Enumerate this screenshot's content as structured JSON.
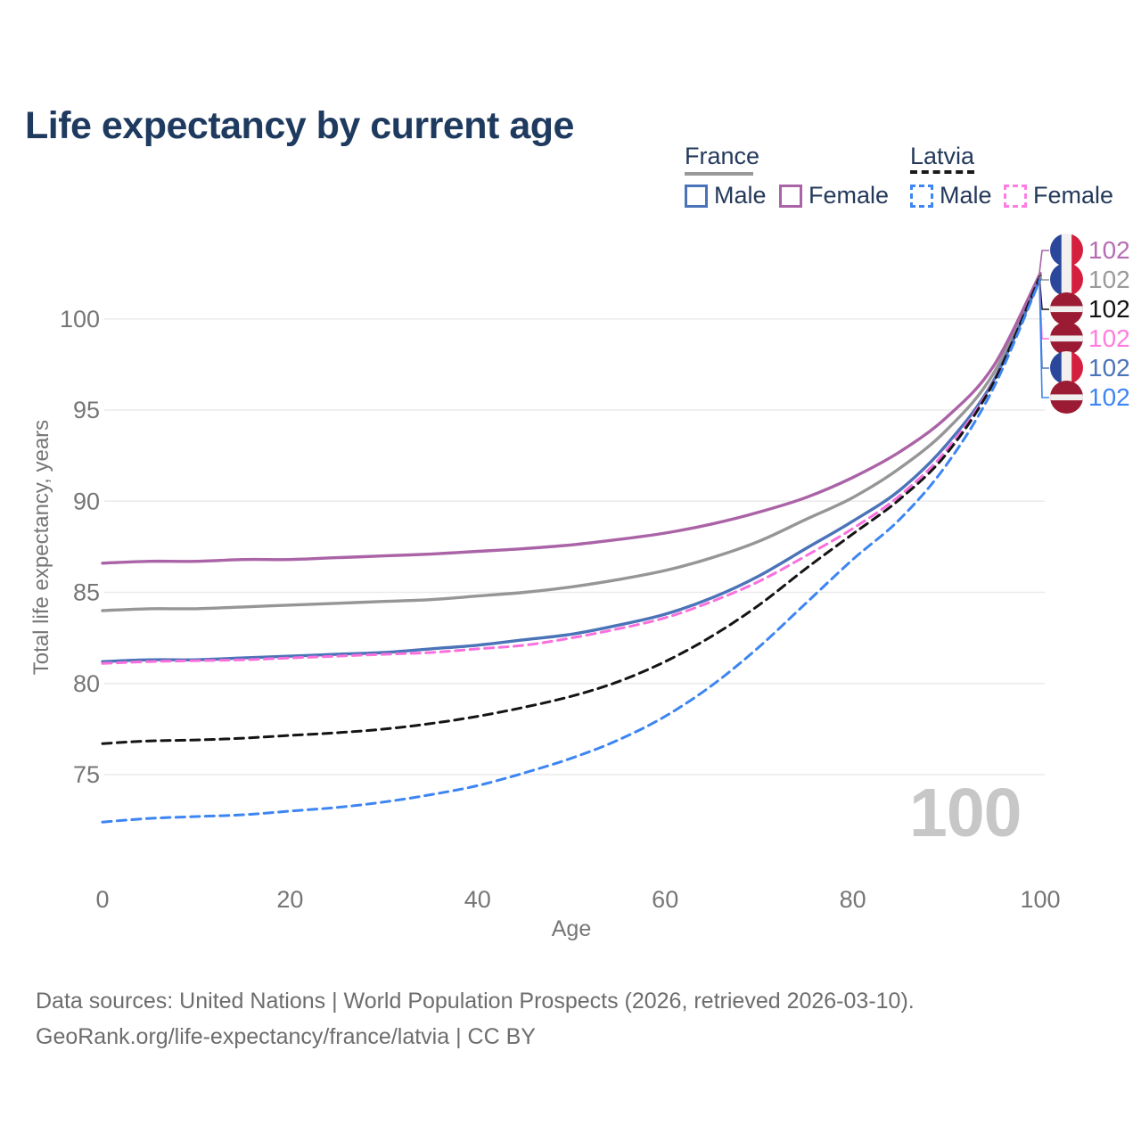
{
  "header": {
    "title": "Life expectancy by current age",
    "title_color": "#1e3a5f"
  },
  "legend": {
    "text_color": "#24395b",
    "groups": [
      {
        "label": "France",
        "line_style": "solid",
        "line_color": "#999999",
        "items": [
          {
            "label": "Male",
            "swatch_color": "#4b73b8",
            "swatch_style": "solid"
          },
          {
            "label": "Female",
            "swatch_color": "#aa63a6",
            "swatch_style": "solid"
          }
        ]
      },
      {
        "label": "Latvia",
        "line_style": "dashed",
        "line_color": "#1a1a1a",
        "items": [
          {
            "label": "Male",
            "swatch_color": "#3d85f2",
            "swatch_style": "dashed"
          },
          {
            "label": "Female",
            "swatch_color": "#ff7ce0",
            "swatch_style": "dashed"
          }
        ]
      }
    ]
  },
  "chart_data": {
    "type": "line",
    "title": "Life expectancy by current age",
    "xlabel": "Age",
    "ylabel": "Total life expectancy, years",
    "x_ticks": [
      0,
      20,
      40,
      60,
      80,
      100
    ],
    "y_ticks": [
      75,
      80,
      85,
      90,
      95,
      100
    ],
    "xlim": [
      0,
      100
    ],
    "ylim": [
      71.5,
      103
    ],
    "grid": "horizontal-only",
    "legend_position": "top-right",
    "ages": [
      0,
      5,
      10,
      15,
      20,
      25,
      30,
      35,
      40,
      45,
      50,
      55,
      60,
      65,
      70,
      75,
      80,
      85,
      90,
      95,
      100
    ],
    "series": [
      {
        "name": "France (both sexes)",
        "country": "France",
        "sex": "Both",
        "style": "solid",
        "color": "#969696",
        "values": [
          84.0,
          84.1,
          84.1,
          84.2,
          84.3,
          84.4,
          84.5,
          84.6,
          84.8,
          85.0,
          85.3,
          85.7,
          86.2,
          86.9,
          87.8,
          89.0,
          90.2,
          91.8,
          93.9,
          97.0,
          102.42
        ]
      },
      {
        "name": "France Female",
        "country": "France",
        "sex": "Female",
        "style": "solid",
        "color": "#aa63a6",
        "values": [
          86.6,
          86.7,
          86.7,
          86.8,
          86.8,
          86.9,
          87.0,
          87.1,
          87.25,
          87.4,
          87.6,
          87.9,
          88.25,
          88.75,
          89.4,
          90.2,
          91.3,
          92.7,
          94.6,
          97.4,
          102.5
        ]
      },
      {
        "name": "France Male",
        "country": "France",
        "sex": "Male",
        "style": "solid",
        "color": "#4b73b8",
        "values": [
          81.2,
          81.3,
          81.3,
          81.4,
          81.5,
          81.6,
          81.7,
          81.9,
          82.1,
          82.4,
          82.7,
          83.2,
          83.8,
          84.7,
          85.9,
          87.4,
          88.9,
          90.6,
          93.1,
          96.6,
          102.24
        ]
      },
      {
        "name": "Latvia Female",
        "country": "Latvia",
        "sex": "Female",
        "style": "dashed",
        "color": "#f970dd",
        "values": [
          81.1,
          81.2,
          81.25,
          81.3,
          81.4,
          81.5,
          81.6,
          81.7,
          81.9,
          82.1,
          82.5,
          83.0,
          83.6,
          84.5,
          85.6,
          87.0,
          88.5,
          90.3,
          92.8,
          96.55,
          102.3
        ]
      },
      {
        "name": "Latvia (both sexes)",
        "country": "Latvia",
        "sex": "Both",
        "style": "dashed",
        "color": "#141414",
        "values": [
          76.7,
          76.85,
          76.9,
          77.0,
          77.15,
          77.3,
          77.5,
          77.8,
          78.2,
          78.7,
          79.3,
          80.1,
          81.2,
          82.6,
          84.3,
          86.3,
          88.2,
          90.1,
          92.6,
          96.5,
          102.36
        ]
      },
      {
        "name": "Latvia Male",
        "country": "Latvia",
        "sex": "Male",
        "style": "dashed",
        "color": "#3d85f2",
        "values": [
          72.4,
          72.6,
          72.7,
          72.8,
          73.0,
          73.2,
          73.5,
          73.9,
          74.4,
          75.1,
          75.9,
          76.9,
          78.2,
          79.9,
          82.0,
          84.4,
          86.8,
          89.0,
          92.0,
          96.2,
          102.18
        ]
      }
    ],
    "end_labels": [
      {
        "series": "France Female",
        "flag": "france",
        "value": "102",
        "color": "#b46db2"
      },
      {
        "series": "France (both sexes)",
        "flag": "france",
        "value": "102",
        "color": "#9a9a9a"
      },
      {
        "series": "Latvia (both sexes)",
        "flag": "latvia",
        "value": "102",
        "color": "#111111"
      },
      {
        "series": "Latvia Female",
        "flag": "latvia",
        "value": "102",
        "color": "#ff7ce0"
      },
      {
        "series": "France Male",
        "flag": "france",
        "value": "102",
        "color": "#4b73b8"
      },
      {
        "series": "Latvia Male",
        "flag": "latvia",
        "value": "102",
        "color": "#3d85f2"
      }
    ],
    "flag_colors": {
      "france": {
        "blue": "#2a479c",
        "white": "#f3f1f0",
        "red": "#d51f3f"
      },
      "latvia": {
        "red": "#9b1b34",
        "white": "#f0eeee"
      }
    }
  },
  "axis": {
    "tick_color": "#767676",
    "grid_color": "#eaeaea",
    "ylabel": "Total life expectancy, years",
    "xlabel": "Age"
  },
  "watermark": {
    "text": "100",
    "color": "#c7c7c7"
  },
  "footer": {
    "color": "#6d6d6d",
    "line1": "Data sources: United Nations | World Population Prospects (2026, retrieved 2026-03-10).",
    "line2": "GeoRank.org/life-expectancy/france/latvia | CC BY"
  }
}
